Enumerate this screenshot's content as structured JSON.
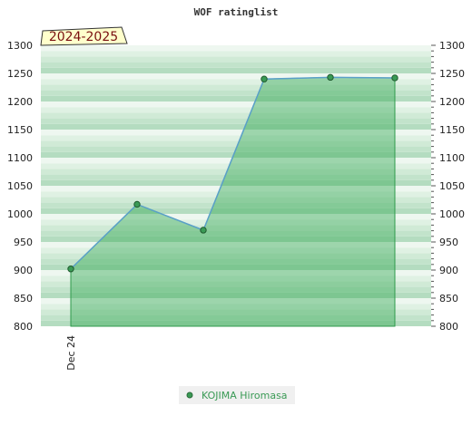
{
  "chart_data": {
    "type": "area",
    "title": "WOF ratinglist",
    "season_label": "2024-2025",
    "x": [
      "Dec 24",
      "",
      "",
      "",
      "",
      ""
    ],
    "series": [
      {
        "name": "KOJIMA Hiromasa",
        "values": [
          902,
          1017,
          971,
          1240,
          1243,
          1242
        ]
      }
    ],
    "ylim": [
      800,
      1300
    ],
    "y_ticks": [
      800,
      850,
      900,
      950,
      1000,
      1050,
      1100,
      1150,
      1200,
      1250,
      1300
    ],
    "y_axis_both_sides": true,
    "legend_position": "bottom",
    "grid": "horizontal-bands",
    "colors": {
      "line": "#5aa0c8",
      "area": "#3aaa58",
      "marker": "#3a9a55",
      "band_dark": "#b4dcc0",
      "band_light": "#eef7f0",
      "season_bg": "#ffffcc",
      "season_text": "#7a1010",
      "legend_text": "#3a9a55",
      "legend_bg": "#f0f0f0"
    }
  }
}
